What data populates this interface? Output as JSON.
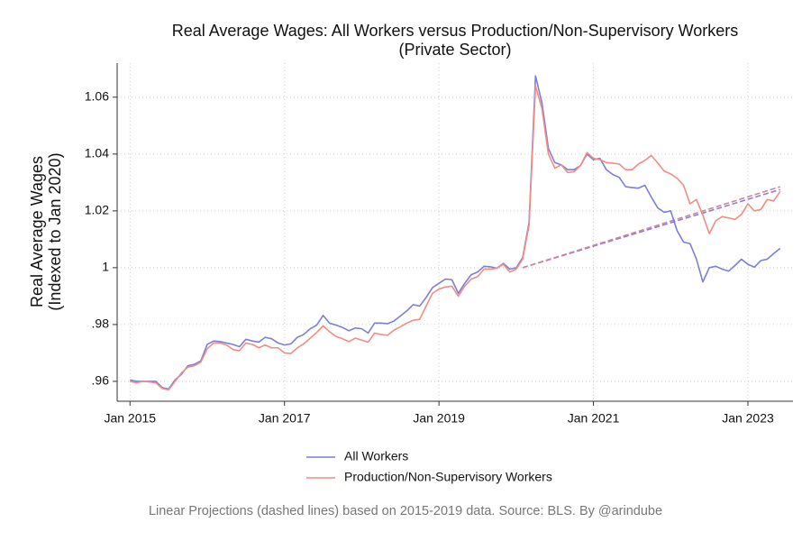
{
  "chart_data": {
    "type": "line",
    "title": "Real Average Wages: All Workers versus Production/Non-Supervisory Workers",
    "subtitle": "(Private Sector)",
    "y_label": [
      "Real Average Wages",
      "(Indexed to Jan 2020)"
    ],
    "note": "Linear Projections (dashed lines) based on 2015-2019 data. Source: BLS. By @arindube",
    "x": [
      "2015-01",
      "2015-02",
      "2015-03",
      "2015-04",
      "2015-05",
      "2015-06",
      "2015-07",
      "2015-08",
      "2015-09",
      "2015-10",
      "2015-11",
      "2015-12",
      "2016-01",
      "2016-02",
      "2016-03",
      "2016-04",
      "2016-05",
      "2016-06",
      "2016-07",
      "2016-08",
      "2016-09",
      "2016-10",
      "2016-11",
      "2016-12",
      "2017-01",
      "2017-02",
      "2017-03",
      "2017-04",
      "2017-05",
      "2017-06",
      "2017-07",
      "2017-08",
      "2017-09",
      "2017-10",
      "2017-11",
      "2017-12",
      "2018-01",
      "2018-02",
      "2018-03",
      "2018-04",
      "2018-05",
      "2018-06",
      "2018-07",
      "2018-08",
      "2018-09",
      "2018-10",
      "2018-11",
      "2018-12",
      "2019-01",
      "2019-02",
      "2019-03",
      "2019-04",
      "2019-05",
      "2019-06",
      "2019-07",
      "2019-08",
      "2019-09",
      "2019-10",
      "2019-11",
      "2019-12",
      "2020-01",
      "2020-02",
      "2020-03",
      "2020-04",
      "2020-05",
      "2020-06",
      "2020-07",
      "2020-08",
      "2020-09",
      "2020-10",
      "2020-11",
      "2020-12",
      "2021-01",
      "2021-02",
      "2021-03",
      "2021-04",
      "2021-05",
      "2021-06",
      "2021-07",
      "2021-08",
      "2021-09",
      "2021-10",
      "2021-11",
      "2021-12",
      "2022-01",
      "2022-02",
      "2022-03",
      "2022-04",
      "2022-05",
      "2022-06",
      "2022-07",
      "2022-08",
      "2022-09",
      "2022-10",
      "2022-11",
      "2022-12",
      "2023-01",
      "2023-02",
      "2023-03",
      "2023-04",
      "2023-05",
      "2023-06"
    ],
    "series": [
      {
        "name": "All Workers",
        "color": "#7b7fd8",
        "values": [
          0.9605,
          0.96,
          0.96,
          0.96,
          0.96,
          0.9578,
          0.9573,
          0.9605,
          0.9625,
          0.9655,
          0.966,
          0.9672,
          0.973,
          0.9742,
          0.974,
          0.9735,
          0.973,
          0.9722,
          0.9748,
          0.9742,
          0.9738,
          0.9755,
          0.975,
          0.9735,
          0.9728,
          0.9732,
          0.9755,
          0.9765,
          0.9785,
          0.9798,
          0.9832,
          0.9805,
          0.9798,
          0.979,
          0.9778,
          0.9788,
          0.9785,
          0.977,
          0.9805,
          0.9805,
          0.9803,
          0.9812,
          0.983,
          0.9848,
          0.987,
          0.9865,
          0.9895,
          0.993,
          0.9945,
          0.996,
          0.9958,
          0.991,
          0.9945,
          0.9975,
          0.9985,
          1.0005,
          1.0003,
          0.9998,
          1.0015,
          0.9995,
          1.0,
          1.0035,
          1.016,
          1.0675,
          1.058,
          1.042,
          1.037,
          1.0362,
          1.0345,
          1.0345,
          1.036,
          1.04,
          1.038,
          1.0385,
          1.0345,
          1.0328,
          1.0318,
          1.0285,
          1.0282,
          1.028,
          1.029,
          1.0248,
          1.021,
          1.0195,
          1.02,
          1.013,
          1.009,
          1.0085,
          1.003,
          0.995,
          1.0,
          1.0005,
          0.9995,
          0.9988,
          1.0008,
          1.003,
          1.0012,
          1.0002,
          1.0025,
          1.003,
          1.005,
          1.0068
        ]
      },
      {
        "name": "Production/Non-Supervisory Workers",
        "color": "#f08c84",
        "values": [
          0.96,
          0.9595,
          0.96,
          0.9598,
          0.9595,
          0.9575,
          0.957,
          0.96,
          0.963,
          0.965,
          0.9655,
          0.9668,
          0.9715,
          0.9735,
          0.9735,
          0.9728,
          0.9712,
          0.9708,
          0.9735,
          0.973,
          0.9718,
          0.9728,
          0.9718,
          0.9718,
          0.97,
          0.9698,
          0.9718,
          0.9732,
          0.9752,
          0.9772,
          0.9795,
          0.9775,
          0.9758,
          0.975,
          0.974,
          0.9752,
          0.9745,
          0.9738,
          0.977,
          0.9765,
          0.9762,
          0.978,
          0.9792,
          0.9805,
          0.9815,
          0.9818,
          0.9865,
          0.991,
          0.9925,
          0.9932,
          0.9935,
          0.99,
          0.9935,
          0.996,
          0.9968,
          0.9995,
          0.9995,
          0.9998,
          1.0012,
          0.9985,
          0.9995,
          1.003,
          1.015,
          1.064,
          1.056,
          1.04,
          1.035,
          1.0362,
          1.0335,
          1.0338,
          1.036,
          1.0405,
          1.0385,
          1.038,
          1.037,
          1.0368,
          1.0365,
          1.0345,
          1.0345,
          1.0365,
          1.0378,
          1.0395,
          1.0368,
          1.034,
          1.033,
          1.0315,
          1.029,
          1.0225,
          1.024,
          1.0185,
          1.012,
          1.0165,
          1.018,
          1.0175,
          1.017,
          1.0188,
          1.0225,
          1.02,
          1.0205,
          1.024,
          1.0235,
          1.0268
        ]
      }
    ],
    "projections": [
      {
        "color": "#8a7fd0",
        "x": [
          "2020-02",
          "2023-06"
        ],
        "values": [
          1.0,
          1.0275
        ]
      },
      {
        "color": "#d0849a",
        "x": [
          "2020-02",
          "2023-06"
        ],
        "values": [
          1.0,
          1.0285
        ]
      }
    ],
    "xlim": [
      "2014-11",
      "2023-08"
    ],
    "xticks": [
      {
        "value": "2015-01",
        "label": "Jan 2015"
      },
      {
        "value": "2017-01",
        "label": "Jan 2017"
      },
      {
        "value": "2019-01",
        "label": "Jan 2019"
      },
      {
        "value": "2021-01",
        "label": "Jan 2021"
      },
      {
        "value": "2023-01",
        "label": "Jan 2023"
      }
    ],
    "ylim": [
      0.953,
      1.072
    ],
    "yticks": [
      {
        "value": 0.96,
        "label": ".96"
      },
      {
        "value": 0.98,
        "label": ".98"
      },
      1,
      1.02,
      1.04,
      1.06
    ],
    "grid": true,
    "legend": "bottom"
  }
}
